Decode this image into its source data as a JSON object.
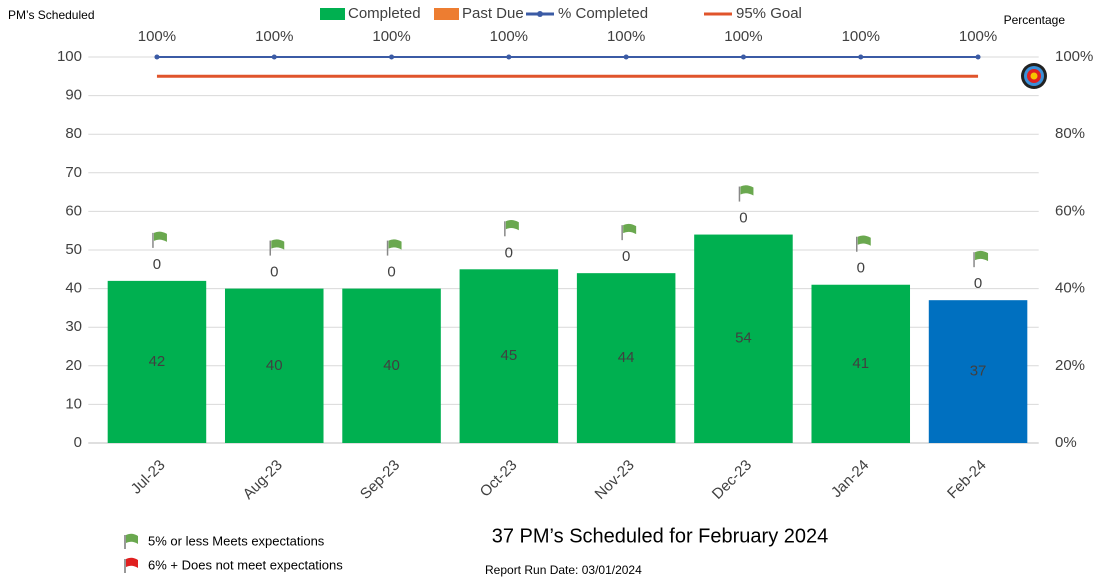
{
  "chart_data": {
    "type": "bar",
    "y_label": "PM’s Scheduled",
    "y2_label": "Percentage",
    "subtitle": "37 PM’s Scheduled for February 2024",
    "run_date": "Report Run Date: 03/01/2024",
    "annotations": [
      "5% or less Meets expectations",
      "6% + Does not meet expectations"
    ],
    "categories": [
      "Jul-23",
      "Aug-23",
      "Sep-23",
      "Oct-23",
      "Nov-23",
      "Dec-23",
      "Jan-24",
      "Feb-24"
    ],
    "series": [
      {
        "name": "Completed",
        "color": "#00b050",
        "values": [
          42,
          40,
          40,
          45,
          44,
          54,
          41,
          37
        ],
        "point_colors": [
          "#00b050",
          "#00b050",
          "#00b050",
          "#00b050",
          "#00b050",
          "#00b050",
          "#00b050",
          "#0070c0"
        ]
      },
      {
        "name": "Past Due",
        "color": "#ed7d31",
        "values": [
          0,
          0,
          0,
          0,
          0,
          0,
          0,
          0
        ]
      },
      {
        "name": "% Completed",
        "type": "line",
        "axis": "y2",
        "color": "#3b5ba5",
        "values": [
          100,
          100,
          100,
          100,
          100,
          100,
          100,
          100
        ],
        "value_labels": [
          "100%",
          "100%",
          "100%",
          "100%",
          "100%",
          "100%",
          "100%",
          "100%"
        ]
      },
      {
        "name": "95% Goal",
        "type": "line",
        "axis": "y2",
        "color": "#e0542b",
        "values": [
          95,
          95,
          95,
          95,
          95,
          95,
          95,
          95
        ]
      }
    ],
    "ylim": [
      0,
      100
    ],
    "yticks": [
      0,
      10,
      20,
      30,
      40,
      50,
      60,
      70,
      80,
      90,
      100
    ],
    "y2lim": [
      0,
      100
    ],
    "y2ticks": [
      {
        "value": 0,
        "label": "0%"
      },
      {
        "value": 20,
        "label": "20%"
      },
      {
        "value": 40,
        "label": "40%"
      },
      {
        "value": 60,
        "label": "60%"
      },
      {
        "value": 80,
        "label": "80%"
      },
      {
        "value": 100,
        "label": "100%"
      }
    ],
    "grid": true
  }
}
